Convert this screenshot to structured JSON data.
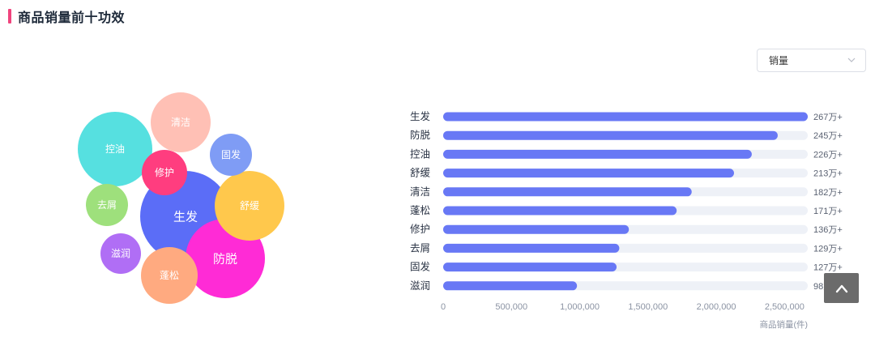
{
  "header": {
    "title": "商品销量前十功效"
  },
  "select": {
    "value": "销量",
    "icon": "chevron-down-icon"
  },
  "back_to_top": {
    "icon": "chevron-up-icon"
  },
  "chart_data": [
    {
      "type": "bubble",
      "title": "",
      "categories": [
        "生发",
        "防脱",
        "控油",
        "舒缓",
        "清洁",
        "蓬松",
        "修护",
        "去屑",
        "固发",
        "滋润"
      ],
      "values": [
        2670000,
        2450000,
        2260000,
        2130000,
        1820000,
        1710000,
        1360000,
        1290000,
        1270000,
        980000
      ],
      "colors": [
        "#5b6df7",
        "#ff2bd6",
        "#56e0e0",
        "#ffc84c",
        "#ffc0b5",
        "#ffaa80",
        "#ff3d7f",
        "#9ee07c",
        "#7f9cf5",
        "#b06ef5"
      ]
    },
    {
      "type": "bar",
      "orientation": "horizontal",
      "categories": [
        "生发",
        "防脱",
        "控油",
        "舒缓",
        "清洁",
        "蓬松",
        "修护",
        "去屑",
        "固发",
        "滋润"
      ],
      "values": [
        2670000,
        2450000,
        2260000,
        2130000,
        1820000,
        1710000,
        1360000,
        1290000,
        1270000,
        980000
      ],
      "value_labels": [
        "267万+",
        "245万+",
        "226万+",
        "213万+",
        "182万+",
        "171万+",
        "136万+",
        "129万+",
        "127万+",
        "98万+"
      ],
      "x_ticks": [
        "0",
        "500,000",
        "1,000,000",
        "1,500,000",
        "2,000,000",
        "2,500,000"
      ],
      "xlim": [
        0,
        2670000
      ],
      "xlabel": "商品销量(件)",
      "ylabel": "",
      "bar_color": "#6878f5",
      "track_color": "#eef1f7"
    }
  ]
}
